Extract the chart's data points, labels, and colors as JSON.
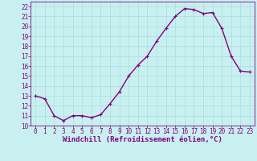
{
  "x": [
    0,
    1,
    2,
    3,
    4,
    5,
    6,
    7,
    8,
    9,
    10,
    11,
    12,
    13,
    14,
    15,
    16,
    17,
    18,
    19,
    20,
    21,
    22,
    23
  ],
  "y": [
    13.0,
    12.7,
    11.0,
    10.5,
    11.0,
    11.0,
    10.8,
    11.1,
    12.2,
    13.4,
    15.0,
    16.1,
    17.0,
    18.5,
    19.8,
    21.0,
    21.8,
    21.7,
    21.3,
    21.4,
    19.8,
    17.0,
    15.5,
    15.4
  ],
  "line_color": "#800080",
  "marker": "+",
  "marker_size": 3,
  "linewidth": 1.0,
  "bg_color": "#c8f0f0",
  "grid_color": "#aadddd",
  "xlabel": "Windchill (Refroidissement éolien,°C)",
  "xlabel_color": "#800080",
  "xlabel_fontsize": 6.5,
  "tick_color": "#800080",
  "tick_fontsize": 5.5,
  "ylim": [
    10,
    22.5
  ],
  "xlim": [
    -0.5,
    23.5
  ],
  "yticks": [
    10,
    11,
    12,
    13,
    14,
    15,
    16,
    17,
    18,
    19,
    20,
    21,
    22
  ],
  "xticks": [
    0,
    1,
    2,
    3,
    4,
    5,
    6,
    7,
    8,
    9,
    10,
    11,
    12,
    13,
    14,
    15,
    16,
    17,
    18,
    19,
    20,
    21,
    22,
    23
  ]
}
